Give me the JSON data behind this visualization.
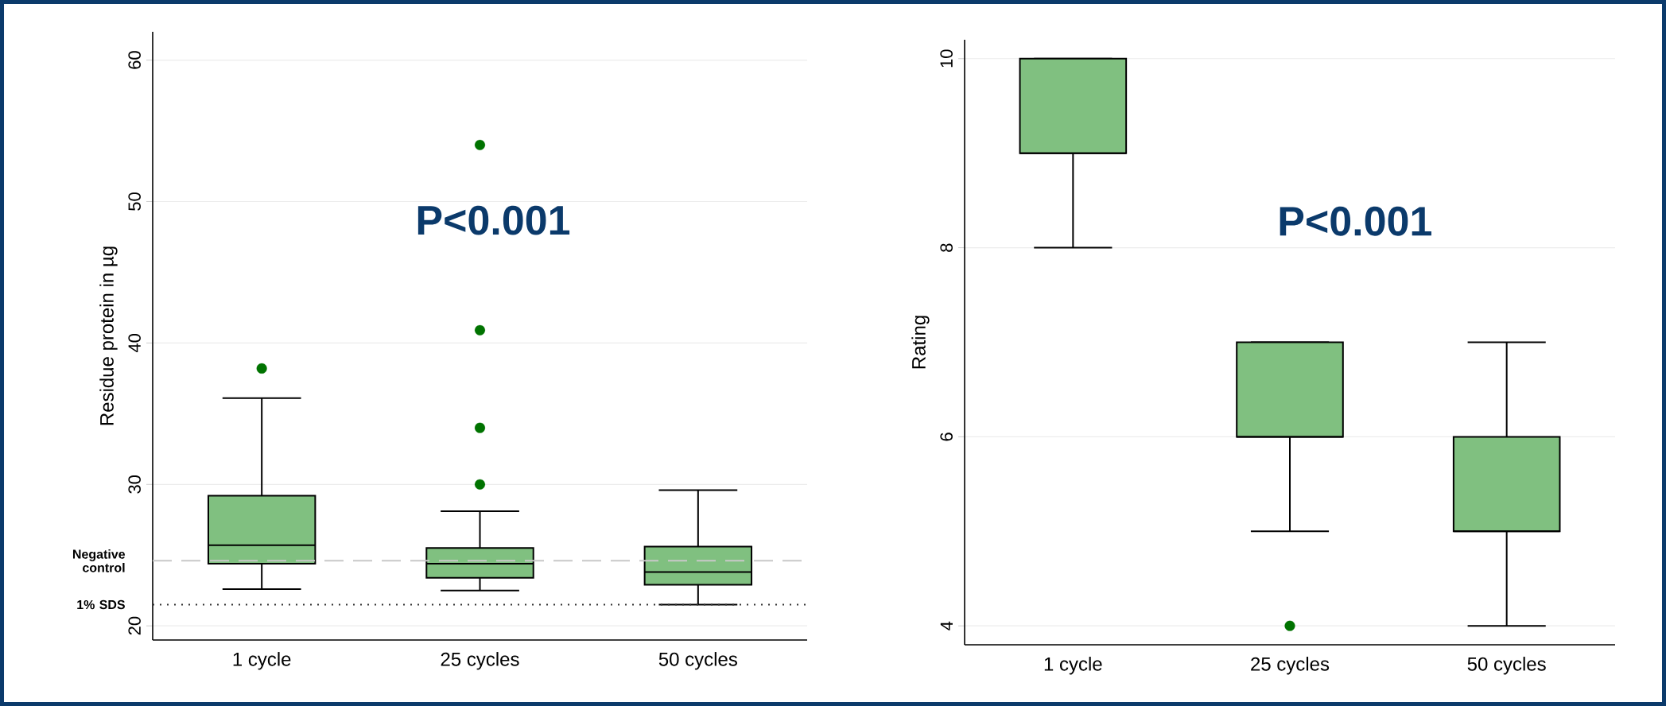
{
  "chart_data": [
    {
      "type": "box",
      "categories": [
        "1 cycle",
        "25 cycles",
        "50 cycles"
      ],
      "ylabel": "Residue protein in µg",
      "ylim": [
        19,
        62
      ],
      "yticks": [
        20,
        30,
        40,
        50,
        60
      ],
      "grid": "y",
      "annotations": [
        "P<0.001"
      ],
      "ref_lines": [
        {
          "axis": "y",
          "value": 24.6,
          "label": "Negative control",
          "color": "#c8c8c8",
          "line_style": "dashed"
        },
        {
          "axis": "y",
          "value": 21.5,
          "label": "1% SDS",
          "color": "#333333",
          "line_style": "dotted"
        }
      ],
      "series": [
        {
          "color": "#80c080",
          "boxes": [
            {
              "low": 22.6,
              "q1": 24.4,
              "median": 25.7,
              "q3": 29.2,
              "high": 36.1,
              "outliers": [
                38.2
              ]
            },
            {
              "low": 22.5,
              "q1": 23.4,
              "median": 24.4,
              "q3": 25.5,
              "high": 28.1,
              "outliers": [
                30,
                34,
                40.9,
                54
              ]
            },
            {
              "low": 21.5,
              "q1": 22.9,
              "median": 23.8,
              "q3": 25.6,
              "high": 29.6
            }
          ]
        }
      ]
    },
    {
      "type": "box",
      "categories": [
        "1 cycle",
        "25 cycles",
        "50 cycles"
      ],
      "ylabel": "Rating",
      "ylim": [
        3.8,
        10.2
      ],
      "yticks": [
        4,
        6,
        8,
        10
      ],
      "grid": "y",
      "annotations": [
        "P<0.001"
      ],
      "series": [
        {
          "color": "#80c080",
          "boxes": [
            {
              "low": 8,
              "q1": 9,
              "median": 9,
              "q3": 10,
              "high": 10
            },
            {
              "low": 5,
              "q1": 6,
              "median": 6,
              "q3": 7,
              "high": 7,
              "outliers": [
                4
              ]
            },
            {
              "low": 4,
              "q1": 5,
              "median": 5,
              "q3": 6,
              "high": 7
            }
          ]
        }
      ]
    }
  ]
}
